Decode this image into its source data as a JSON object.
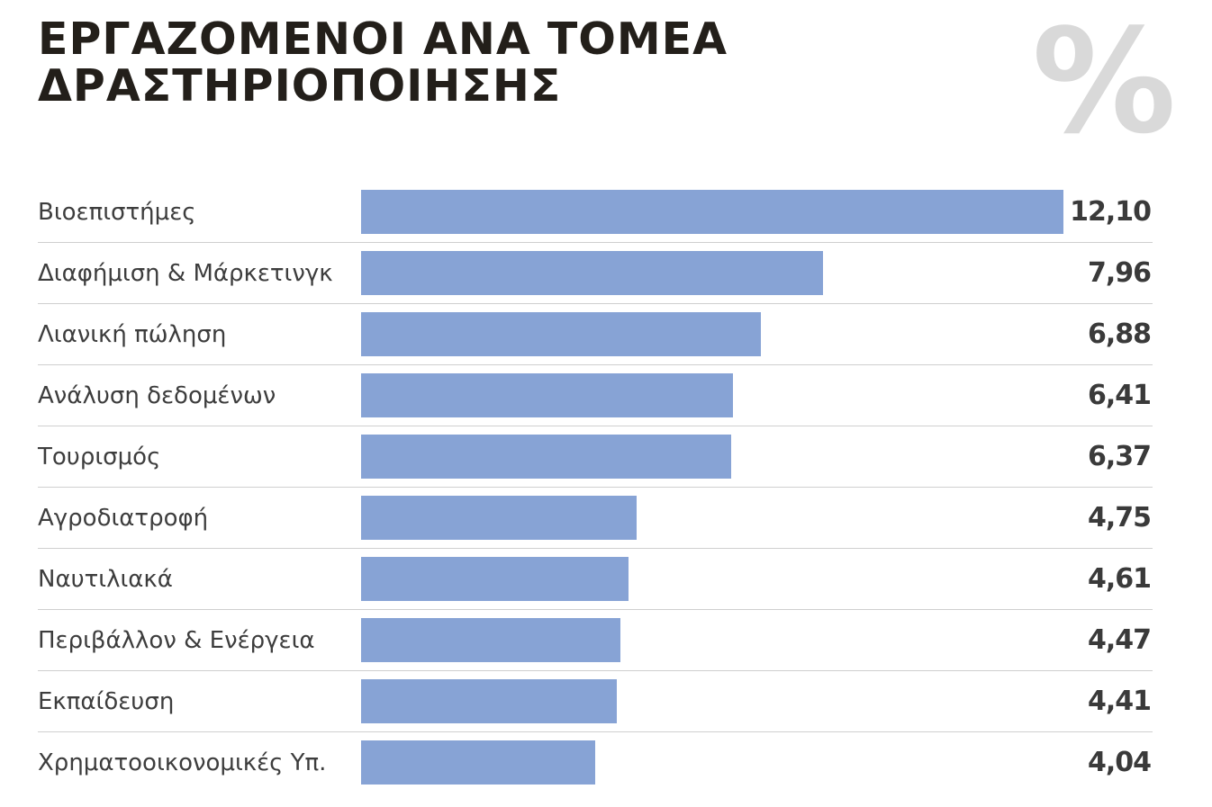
{
  "header": {
    "title_line1": "ΕΡΓΑΖΟΜΕΝΟΙ ΑΝΑ ΤΟΜΕΑ",
    "title_line2": "ΔΡΑΣΤΗΡΙΟΠΟΙΗΣΗΣ",
    "unit_symbol": "%"
  },
  "colors": {
    "bar": "#87a3d5",
    "title": "#231f1a",
    "unit_symbol": "#d9d9d9"
  },
  "chart_data": {
    "type": "bar",
    "orientation": "horizontal",
    "title": "ΕΡΓΑΖΟΜΕΝΟΙ ΑΝΑ ΤΟΜΕΑ ΔΡΑΣΤΗΡΙΟΠΟΙΗΣΗΣ",
    "xlabel": "",
    "ylabel": "",
    "unit": "%",
    "xlim": [
      0,
      12.1
    ],
    "grid": false,
    "legend": "none",
    "categories": [
      "Βιοεπιστήμες",
      "Διαφήμιση & Μάρκετινγκ",
      "Λιανική πώληση",
      "Ανάλυση δεδομένων",
      "Τουρισμός",
      "Αγροδιατροφή",
      "Ναυτιλιακά",
      "Περιβάλλον & Ενέργεια",
      "Εκπαίδευση",
      "Χρηματοοικονομικές Υπ."
    ],
    "values": [
      12.1,
      7.96,
      6.88,
      6.41,
      6.37,
      4.75,
      4.61,
      4.47,
      4.41,
      4.04
    ],
    "value_labels": [
      "12,10",
      "7,96",
      "6,88",
      "6,41",
      "6,37",
      "4,75",
      "4,61",
      "4,47",
      "4,41",
      "4,04"
    ]
  }
}
